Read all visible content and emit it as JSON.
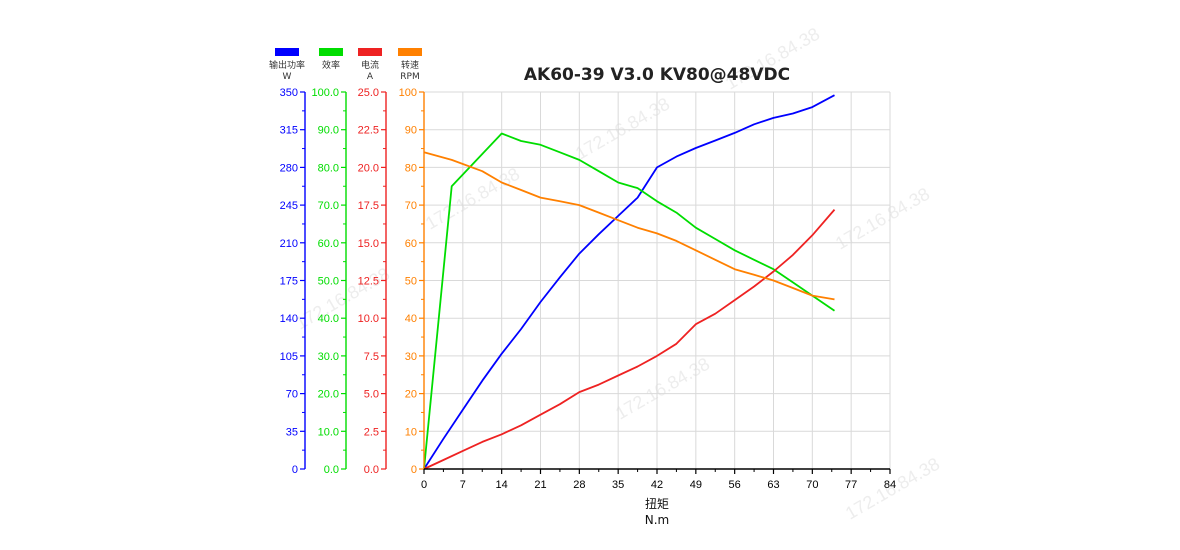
{
  "chart_data": {
    "type": "line",
    "title": "AK60-39 V3.0 KV80@48VDC",
    "xlabel": "扭矩",
    "xunit": "N.m",
    "xlim": [
      0,
      84
    ],
    "xticks": [
      0,
      7,
      14,
      21,
      28,
      35,
      42,
      49,
      56,
      63,
      70,
      77,
      84
    ],
    "grid": true,
    "watermark": "172.16.84.38",
    "axes": [
      {
        "name": "输出功率",
        "unit": "W",
        "color": "#0000ff",
        "ylim": [
          0,
          350
        ],
        "ticks": [
          "0",
          "35",
          "70",
          "105",
          "140",
          "175",
          "210",
          "245",
          "280",
          "315",
          "350"
        ]
      },
      {
        "name": "效率",
        "unit": "",
        "color": "#00dd00",
        "ylim": [
          0,
          100
        ],
        "ticks": [
          "0.0",
          "10.0",
          "20.0",
          "30.0",
          "40.0",
          "50.0",
          "60.0",
          "70.0",
          "80.0",
          "90.0",
          "100.0"
        ]
      },
      {
        "name": "电流",
        "unit": "A",
        "color": "#ee2222",
        "ylim": [
          0,
          25
        ],
        "ticks": [
          "0.0",
          "2.5",
          "5.0",
          "7.5",
          "10.0",
          "12.5",
          "15.0",
          "17.5",
          "20.0",
          "22.5",
          "25.0"
        ]
      },
      {
        "name": "转速",
        "unit": "RPM",
        "color": "#ff8000",
        "ylim": [
          0,
          100
        ],
        "ticks": [
          "0",
          "10",
          "20",
          "30",
          "40",
          "50",
          "60",
          "70",
          "80",
          "90",
          "100"
        ]
      }
    ],
    "series": [
      {
        "name": "输出功率",
        "axis": 0,
        "color": "#0000ff",
        "x": [
          0,
          3.5,
          7,
          10.5,
          14,
          17.5,
          21,
          24.5,
          28,
          31.5,
          35,
          38.5,
          42,
          45.5,
          49,
          52.5,
          56,
          59.5,
          63,
          66.5,
          70,
          74
        ],
        "y": [
          0,
          28,
          55,
          82,
          107,
          130,
          155,
          178,
          200,
          218,
          235,
          252,
          280,
          290,
          298,
          305,
          312,
          320,
          326,
          330,
          336,
          347
        ]
      },
      {
        "name": "效率",
        "axis": 1,
        "color": "#00dd00",
        "x": [
          0,
          5,
          14,
          17.5,
          21,
          24.5,
          28,
          31.5,
          35,
          38.5,
          42,
          45.5,
          49,
          52.5,
          56,
          59.5,
          63,
          66.5,
          70,
          74
        ],
        "y": [
          0,
          75,
          89,
          87,
          86,
          84,
          82,
          79,
          76,
          74.5,
          71,
          68,
          64,
          61,
          58,
          55.5,
          53,
          49.5,
          46,
          42
        ]
      },
      {
        "name": "电流",
        "axis": 2,
        "color": "#ee2222",
        "x": [
          0,
          3.5,
          7,
          10.5,
          14,
          17.5,
          21,
          24.5,
          28,
          31.5,
          35,
          38.5,
          42,
          45.5,
          49,
          52.5,
          56,
          59.5,
          63,
          66.5,
          70,
          74
        ],
        "y": [
          0,
          0.6,
          1.2,
          1.8,
          2.3,
          2.9,
          3.6,
          4.3,
          5.1,
          5.6,
          6.2,
          6.8,
          7.5,
          8.3,
          9.6,
          10.3,
          11.2,
          12.1,
          13.1,
          14.2,
          15.5,
          17.2
        ]
      },
      {
        "name": "转速",
        "axis": 3,
        "color": "#ff8000",
        "x": [
          0,
          5,
          10.5,
          14,
          17.5,
          21,
          24.5,
          28,
          31.5,
          35,
          38.5,
          42,
          45.5,
          49,
          52.5,
          56,
          59.5,
          63,
          66.5,
          70,
          74
        ],
        "y": [
          84,
          82,
          79,
          76,
          74,
          72,
          71,
          70,
          68,
          66,
          64,
          62.5,
          60.5,
          58,
          55.5,
          53,
          51.5,
          50,
          48,
          46,
          45
        ]
      }
    ]
  }
}
